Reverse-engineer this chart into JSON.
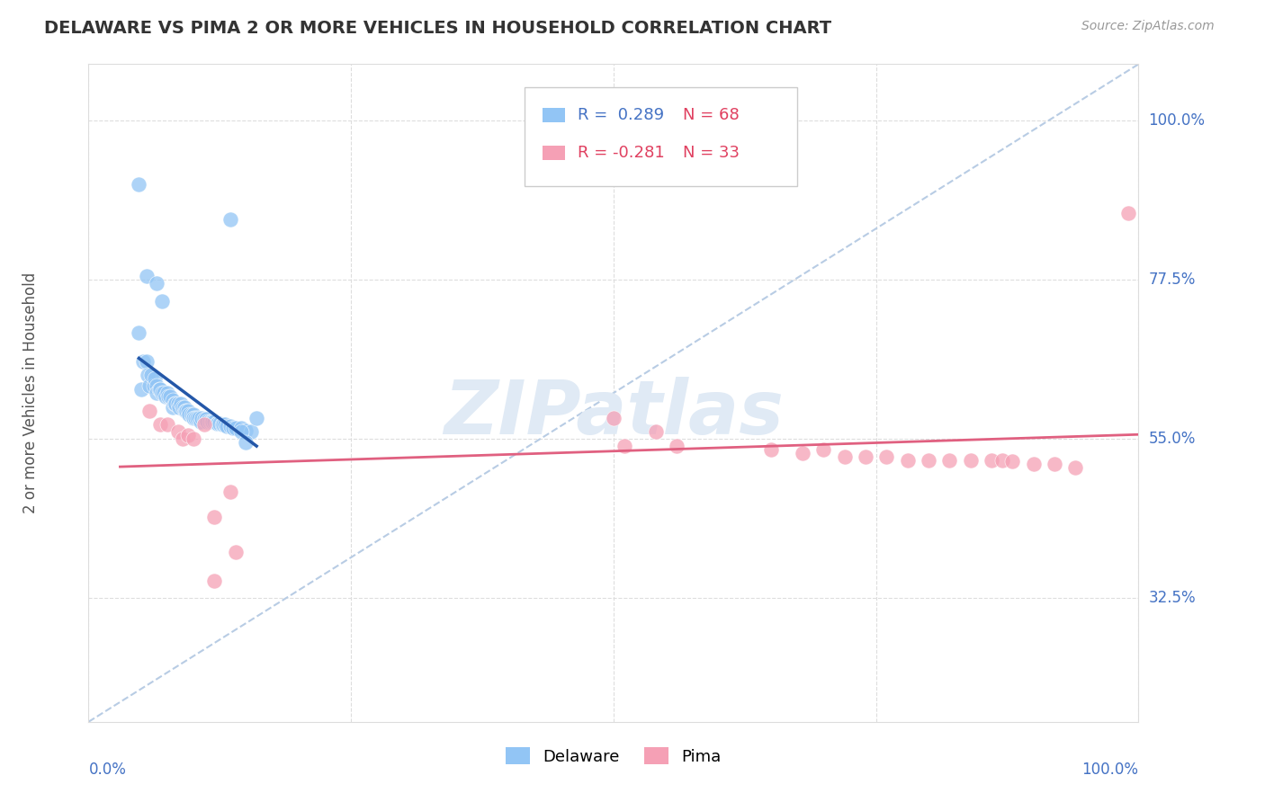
{
  "title": "DELAWARE VS PIMA 2 OR MORE VEHICLES IN HOUSEHOLD CORRELATION CHART",
  "source_text": "Source: ZipAtlas.com",
  "ylabel": "2 or more Vehicles in Household",
  "xlim": [
    0.0,
    1.0
  ],
  "ylim": [
    0.15,
    1.08
  ],
  "ytick_vals": [
    0.325,
    0.55,
    0.775,
    1.0
  ],
  "ytick_labels": [
    "32.5%",
    "55.0%",
    "77.5%",
    "100.0%"
  ],
  "legend_r1": "R =  0.289",
  "legend_n1": "N = 68",
  "legend_r2": "R = -0.281",
  "legend_n2": "N = 33",
  "delaware_color": "#92c5f5",
  "pima_color": "#f5a0b5",
  "delaware_line_color": "#2457a8",
  "pima_line_color": "#e06080",
  "diagonal_color": "#b8cce4",
  "watermark": "ZIPatlas",
  "watermark_color": "#e0eaf5",
  "delaware_x": [
    0.048,
    0.05,
    0.052,
    0.055,
    0.056,
    0.058,
    0.06,
    0.062,
    0.063,
    0.065,
    0.065,
    0.067,
    0.068,
    0.07,
    0.072,
    0.073,
    0.075,
    0.076,
    0.078,
    0.08,
    0.08,
    0.082,
    0.083,
    0.085,
    0.086,
    0.088,
    0.09,
    0.091,
    0.092,
    0.093,
    0.095,
    0.096,
    0.098,
    0.1,
    0.1,
    0.102,
    0.103,
    0.105,
    0.107,
    0.108,
    0.11,
    0.112,
    0.113,
    0.115,
    0.117,
    0.118,
    0.12,
    0.122,
    0.123,
    0.125,
    0.127,
    0.128,
    0.13,
    0.132,
    0.135,
    0.138,
    0.14,
    0.145,
    0.15,
    0.155,
    0.048,
    0.055,
    0.065,
    0.07,
    0.135,
    0.145,
    0.15,
    0.16
  ],
  "delaware_y": [
    0.7,
    0.62,
    0.66,
    0.66,
    0.64,
    0.625,
    0.64,
    0.625,
    0.635,
    0.625,
    0.615,
    0.62,
    0.62,
    0.615,
    0.615,
    0.61,
    0.615,
    0.61,
    0.61,
    0.605,
    0.595,
    0.6,
    0.6,
    0.6,
    0.595,
    0.6,
    0.595,
    0.595,
    0.59,
    0.59,
    0.59,
    0.585,
    0.585,
    0.585,
    0.58,
    0.58,
    0.58,
    0.58,
    0.575,
    0.58,
    0.578,
    0.578,
    0.575,
    0.575,
    0.575,
    0.575,
    0.575,
    0.572,
    0.572,
    0.572,
    0.57,
    0.57,
    0.57,
    0.568,
    0.568,
    0.565,
    0.565,
    0.565,
    0.562,
    0.56,
    0.91,
    0.78,
    0.77,
    0.745,
    0.86,
    0.56,
    0.545,
    0.58
  ],
  "pima_x": [
    0.058,
    0.068,
    0.075,
    0.085,
    0.09,
    0.095,
    0.1,
    0.11,
    0.12,
    0.135,
    0.5,
    0.51,
    0.54,
    0.56,
    0.65,
    0.68,
    0.7,
    0.72,
    0.74,
    0.76,
    0.78,
    0.8,
    0.82,
    0.84,
    0.86,
    0.87,
    0.88,
    0.9,
    0.92,
    0.94,
    0.12,
    0.14,
    0.99
  ],
  "pima_y": [
    0.59,
    0.57,
    0.57,
    0.56,
    0.55,
    0.555,
    0.55,
    0.57,
    0.44,
    0.475,
    0.58,
    0.54,
    0.56,
    0.54,
    0.535,
    0.53,
    0.535,
    0.525,
    0.525,
    0.525,
    0.52,
    0.52,
    0.52,
    0.52,
    0.52,
    0.52,
    0.518,
    0.515,
    0.515,
    0.51,
    0.35,
    0.39,
    0.87
  ]
}
